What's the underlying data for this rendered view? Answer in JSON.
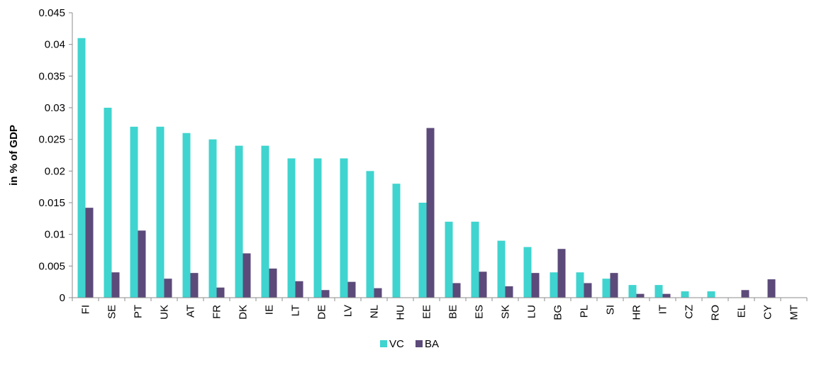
{
  "chart_data": {
    "type": "bar",
    "title": "",
    "xlabel": "",
    "ylabel": "in % of GDP",
    "ylim": [
      0,
      0.045
    ],
    "yticks": [
      "0",
      "0.005",
      "0.01",
      "0.015",
      "0.02",
      "0.025",
      "0.03",
      "0.035",
      "0.04",
      "0.045"
    ],
    "grid": false,
    "legend_position": "bottom",
    "categories": [
      "FI",
      "SE",
      "PT",
      "UK",
      "AT",
      "FR",
      "DK",
      "IE",
      "LT",
      "DE",
      "LV",
      "NL",
      "HU",
      "EE",
      "BE",
      "ES",
      "SK",
      "LU",
      "BG",
      "PL",
      "SI",
      "HR",
      "IT",
      "CZ",
      "RO",
      "EL",
      "CY",
      "MT"
    ],
    "series": [
      {
        "name": "VC",
        "color": "#3FD4CF",
        "values": [
          0.041,
          0.03,
          0.027,
          0.027,
          0.026,
          0.025,
          0.024,
          0.024,
          0.022,
          0.022,
          0.022,
          0.02,
          0.018,
          0.015,
          0.012,
          0.012,
          0.009,
          0.008,
          0.004,
          0.004,
          0.003,
          0.002,
          0.002,
          0.001,
          0.001,
          0,
          0,
          0
        ]
      },
      {
        "name": "BA",
        "color": "#5C4A7A",
        "values": [
          0.0142,
          0.004,
          0.0106,
          0.003,
          0.0039,
          0.0016,
          0.007,
          0.0046,
          0.0026,
          0.0012,
          0.0025,
          0.0015,
          0,
          0.0268,
          0.0023,
          0.0041,
          0.0018,
          0.0039,
          0.0077,
          0.0023,
          0.0039,
          0.0006,
          0.0006,
          0,
          0,
          0.0012,
          0.0029,
          0
        ]
      }
    ]
  }
}
